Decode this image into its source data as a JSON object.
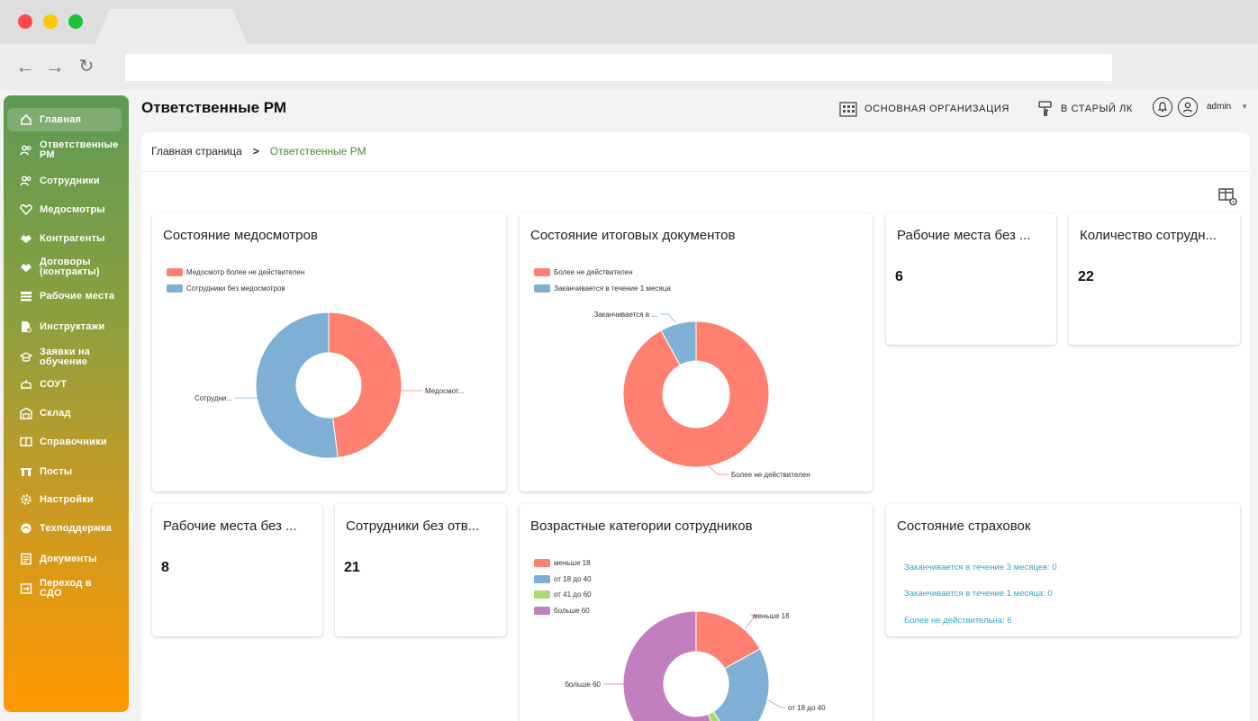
{
  "colors": {
    "red": "#ff8071",
    "blue": "#7eb0d6",
    "green": "#a9dc6c",
    "purple": "#c17fc0",
    "accent_green": "#4a8c3a",
    "link": "#2ea8c4"
  },
  "sidebar": {
    "items": [
      {
        "label": "Главная",
        "icon": "home-icon"
      },
      {
        "label": "Ответственные РМ",
        "icon": "users-icon"
      },
      {
        "label": "Сотрудники",
        "icon": "users-icon"
      },
      {
        "label": "Медосмотры",
        "icon": "heart-icon"
      },
      {
        "label": "Контрагенты",
        "icon": "handshake-icon"
      },
      {
        "label": "Договоры (контракты)",
        "icon": "handshake-icon"
      },
      {
        "label": "Рабочие места",
        "icon": "workplace-icon"
      },
      {
        "label": "Инструктажи",
        "icon": "document-icon"
      },
      {
        "label": "Заявки на обучение",
        "icon": "graduation-icon"
      },
      {
        "label": "СОУТ",
        "icon": "helmet-icon"
      },
      {
        "label": "Склад",
        "icon": "warehouse-icon"
      },
      {
        "label": "Справочники",
        "icon": "book-icon"
      },
      {
        "label": "Посты",
        "icon": "post-icon"
      },
      {
        "label": "Настройки",
        "icon": "gear-icon"
      },
      {
        "label": "Техподдержка",
        "icon": "support-icon"
      },
      {
        "label": "Документы",
        "icon": "file-icon"
      },
      {
        "label": "Переход в СДО",
        "icon": "login-icon"
      }
    ]
  },
  "header": {
    "title": "Ответственные РМ",
    "org": "ОСНОВНАЯ ОРГАНИЗАЦИЯ",
    "old_lk": "В СТАРЫЙ ЛК",
    "user": "admin"
  },
  "breadcrumb": {
    "home": "Главная страница",
    "current": "Ответственные РМ"
  },
  "cards": {
    "medical": {
      "title": "Состояние медосмотров",
      "legend": [
        "Медосмотр более не действителен",
        "Сотрудники без медосмотров"
      ],
      "label_red": "Медосмот...",
      "label_blue": "Сотрудни..."
    },
    "docs": {
      "title": "Состояние итоговых документов",
      "legend": [
        "Более не действителен",
        "Заканчивается в течение 1 месяца"
      ],
      "label_red": "Более не действителен",
      "label_blue": "Заканчивается в ..."
    },
    "workplaces1": {
      "title": "Рабочие места без ...",
      "value": "6"
    },
    "employees_count": {
      "title": "Количество сотрудн...",
      "value": "22"
    },
    "workplaces2": {
      "title": "Рабочие места без ...",
      "value": "8"
    },
    "employees_no": {
      "title": "Сотрудники без отв...",
      "value": "21"
    },
    "ages": {
      "title": "Возрастные категории сотрудников",
      "legend": [
        "меньше 18",
        "от 18 до 40",
        "от 41 до 60",
        "больше 60"
      ],
      "label_lt18": "меньше 18",
      "label_18_40": "от 18 до 40",
      "label_gt60": "больше 60"
    },
    "insurance": {
      "title": "Состояние страховок",
      "items": [
        "Заканчивается в течение 3 месяцев: 0",
        "Заканчивается в течение 1 месяца: 0",
        "Более не действительна: 6"
      ]
    }
  },
  "chart_data": [
    {
      "type": "pie",
      "title": "Состояние медосмотров",
      "categories": [
        "Медосмотр более не действителен",
        "Сотрудники без медосмотров"
      ],
      "values": [
        48,
        52
      ]
    },
    {
      "type": "pie",
      "title": "Состояние итоговых документов",
      "categories": [
        "Более не действителен",
        "Заканчивается в течение 1 месяца"
      ],
      "values": [
        92,
        8
      ]
    },
    {
      "type": "pie",
      "title": "Возрастные категории сотрудников",
      "categories": [
        "меньше 18",
        "от 18 до 40",
        "от 41 до 60",
        "больше 60"
      ],
      "values": [
        17,
        24,
        3,
        56
      ]
    }
  ]
}
